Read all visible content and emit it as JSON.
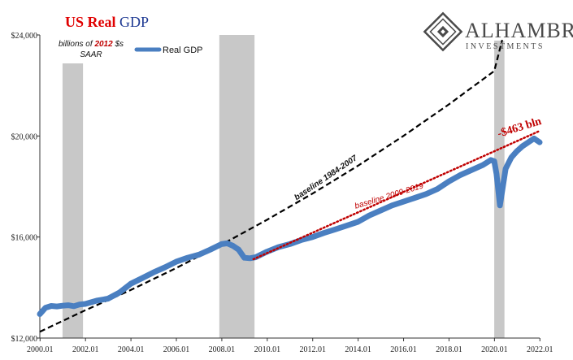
{
  "chart_data": {
    "type": "line",
    "title_part1": "US Real",
    "title_part2": "GDP",
    "title_color1": "#e00000",
    "title_color2": "#1f3a93",
    "units_note_prefix": "billions of",
    "units_note_year": "2012",
    "units_note_suffix": "$s",
    "units_note_line2": "SAAR",
    "brand_name": "Alhambra",
    "brand_sub": "Investments",
    "x_tick_labels": [
      "2000.01",
      "2002.01",
      "2004.01",
      "2006.01",
      "2008.01",
      "2010.01",
      "2012.01",
      "2014.01",
      "2016.01",
      "2018.01",
      "2020.01",
      "2022.01"
    ],
    "y_tick_labels": [
      "$12,000",
      "$16,000",
      "$20,000",
      "$24,000"
    ],
    "y_ticks": [
      12000,
      16000,
      20000,
      24000
    ],
    "ylim": [
      12000,
      24000
    ],
    "xlim": [
      2000.0,
      2022.0
    ],
    "grid": false,
    "legend_position": "top-left",
    "recessions": [
      [
        2001.0,
        2001.9
      ],
      [
        2007.9,
        2009.45
      ],
      [
        2020.0,
        2020.45
      ]
    ],
    "series": [
      {
        "name": "Real GDP",
        "color": "#4a7fc1",
        "x": [
          2000.0,
          2000.25,
          2000.5,
          2000.75,
          2001.0,
          2001.25,
          2001.5,
          2001.75,
          2002.0,
          2002.5,
          2003.0,
          2003.5,
          2004.0,
          2004.5,
          2005.0,
          2005.5,
          2006.0,
          2006.5,
          2007.0,
          2007.5,
          2008.0,
          2008.25,
          2008.5,
          2008.75,
          2009.0,
          2009.25,
          2009.5,
          2010.0,
          2010.5,
          2011.0,
          2011.5,
          2012.0,
          2012.5,
          2013.0,
          2013.5,
          2014.0,
          2014.5,
          2015.0,
          2015.5,
          2016.0,
          2016.5,
          2017.0,
          2017.5,
          2018.0,
          2018.5,
          2019.0,
          2019.5,
          2019.85,
          2020.0,
          2020.1,
          2020.25,
          2020.5,
          2020.75,
          2021.0,
          2021.25,
          2021.5,
          2021.75,
          2022.0
        ],
        "values": [
          12950,
          13200,
          13270,
          13250,
          13280,
          13300,
          13260,
          13330,
          13350,
          13480,
          13560,
          13800,
          14150,
          14370,
          14600,
          14800,
          15020,
          15180,
          15300,
          15500,
          15720,
          15750,
          15650,
          15500,
          15180,
          15160,
          15200,
          15420,
          15600,
          15720,
          15880,
          16000,
          16160,
          16300,
          16450,
          16600,
          16850,
          17050,
          17250,
          17400,
          17550,
          17700,
          17900,
          18200,
          18450,
          18650,
          18850,
          19050,
          19000,
          18500,
          17250,
          18700,
          19150,
          19400,
          19600,
          19750,
          19900,
          19750
        ]
      },
      {
        "name": "baseline 1984-2007",
        "color": "#000000",
        "style": "dashed",
        "x": [
          2000.0,
          2002.0,
          2004.0,
          2006.0,
          2008.0,
          2010.0,
          2012.0,
          2014.0,
          2016.0,
          2018.0,
          2020.0,
          2020.35
        ],
        "values": [
          12250,
          13100,
          13900,
          14770,
          15700,
          16680,
          17720,
          18820,
          20000,
          21250,
          22570,
          23800
        ]
      },
      {
        "name": "baseline 2009-2019",
        "color": "#c00000",
        "style": "dotted",
        "x": [
          2009.4,
          2022.0
        ],
        "values": [
          15120,
          20200
        ]
      }
    ],
    "annotations": [
      {
        "text": "baseline 1984-2007",
        "x": 2011.3,
        "y": 17450,
        "angle": -34,
        "color": "#111111"
      },
      {
        "text": "baseline 2009-2019",
        "x": 2013.9,
        "y": 17120,
        "angle": -17,
        "color": "#c00000"
      },
      {
        "text": "-$463 bln",
        "x": 2020.2,
        "y": 19950,
        "angle": -17,
        "color": "#c00000"
      }
    ]
  }
}
